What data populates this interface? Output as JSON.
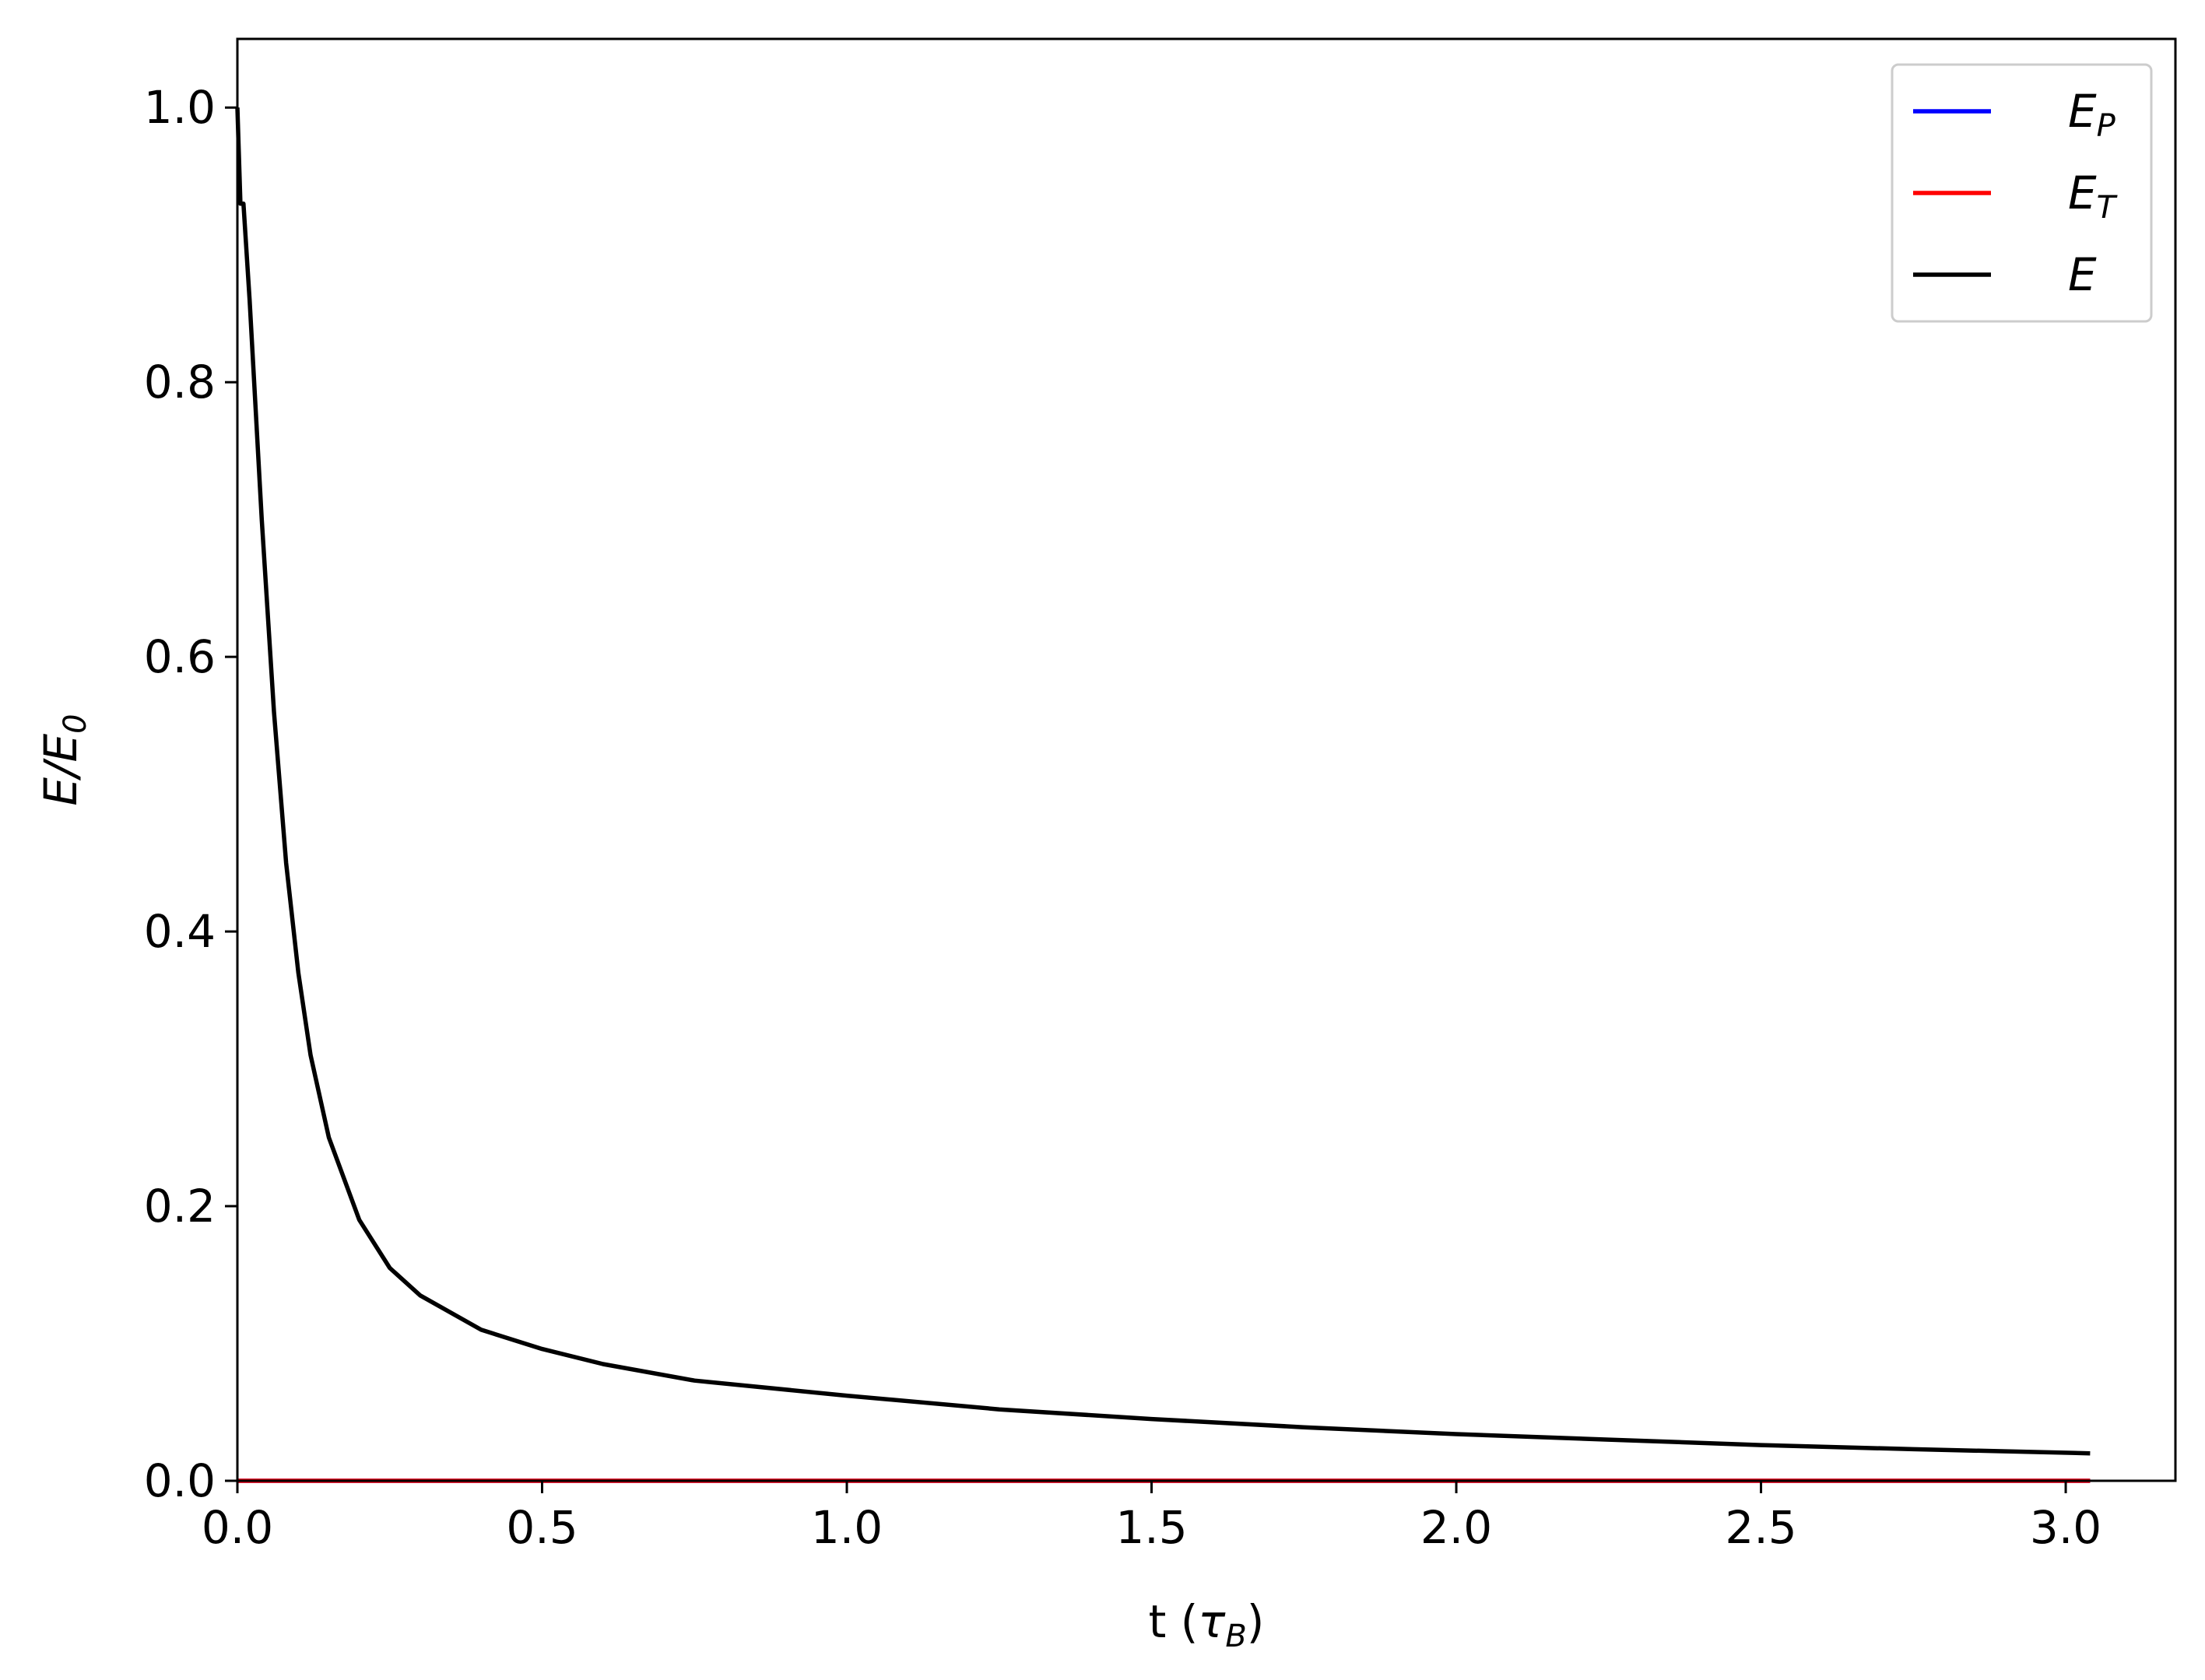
{
  "chart_data": {
    "type": "line",
    "xlabel_main": "t (",
    "xlabel_sym": "τ",
    "xlabel_sub": "B",
    "xlabel_close": ")",
    "ylabel_main": "E/E",
    "ylabel_sub": "0",
    "xlim": [
      0.0,
      3.18
    ],
    "ylim": [
      0.0,
      1.05
    ],
    "xticks": [
      "0.0",
      "0.5",
      "1.0",
      "1.5",
      "2.0",
      "2.5",
      "3.0"
    ],
    "xtick_values": [
      0.0,
      0.5,
      1.0,
      1.5,
      2.0,
      2.5,
      3.0
    ],
    "yticks": [
      "0.0",
      "0.2",
      "0.4",
      "0.6",
      "0.8",
      "1.0"
    ],
    "ytick_values": [
      0.0,
      0.2,
      0.4,
      0.6,
      0.8,
      1.0
    ],
    "grid": false,
    "legend_position": "top-right",
    "series": [
      {
        "name": "E_P",
        "legend_main": "E",
        "legend_sub": "P",
        "color": "#0000ff",
        "x": [
          0.0,
          3.04
        ],
        "y": [
          0.0,
          0.0
        ]
      },
      {
        "name": "E_T",
        "legend_main": "E",
        "legend_sub": "T",
        "color": "#ff0000",
        "x": [
          0.0,
          3.04
        ],
        "y": [
          0.0,
          0.0
        ]
      },
      {
        "name": "E",
        "legend_main": "E",
        "legend_sub": "",
        "color": "#000000",
        "x": [
          0.0,
          0.005,
          0.01,
          0.02,
          0.04,
          0.06,
          0.08,
          0.1,
          0.12,
          0.15,
          0.2,
          0.25,
          0.3,
          0.4,
          0.5,
          0.6,
          0.75,
          1.0,
          1.25,
          1.5,
          1.75,
          2.0,
          2.25,
          2.5,
          2.75,
          3.04
        ],
        "y": [
          1.0,
          0.93,
          0.93,
          0.86,
          0.7,
          0.56,
          0.45,
          0.37,
          0.31,
          0.25,
          0.19,
          0.155,
          0.135,
          0.11,
          0.096,
          0.085,
          0.073,
          0.062,
          0.052,
          0.045,
          0.039,
          0.034,
          0.03,
          0.026,
          0.023,
          0.02
        ]
      }
    ]
  }
}
